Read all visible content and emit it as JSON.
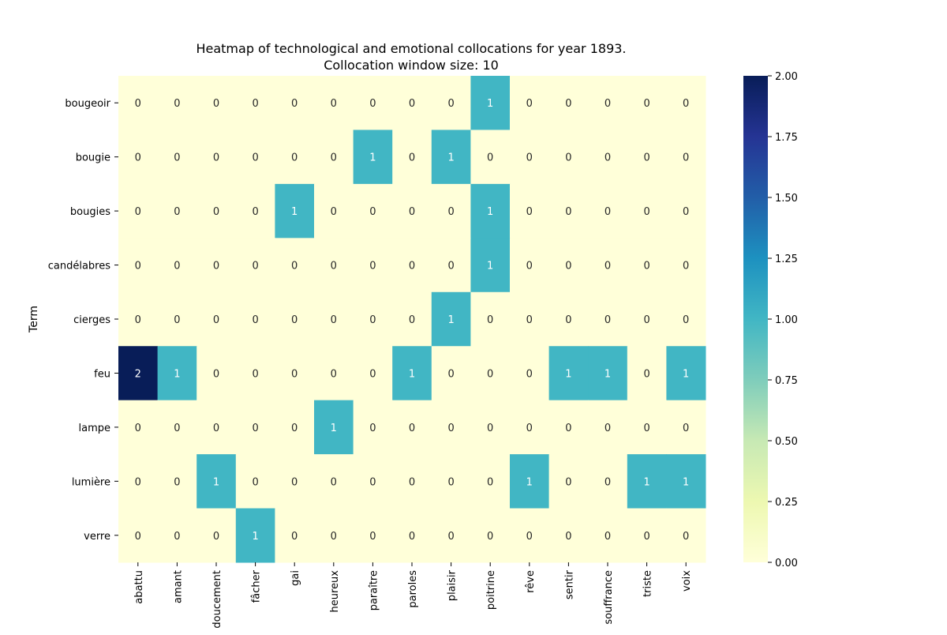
{
  "chart_data": {
    "type": "heatmap",
    "title": "Heatmap of technological and emotional collocations for year 1893.",
    "subtitle": "Collocation window size: 10",
    "xlabel": "",
    "ylabel": "Term",
    "rows": [
      "bougeoir",
      "bougie",
      "bougies",
      "candélabres",
      "cierges",
      "feu",
      "lampe",
      "lumière",
      "verre"
    ],
    "columns": [
      "abattu",
      "amant",
      "doucement",
      "fâcher",
      "gai",
      "heureux",
      "paraître",
      "paroles",
      "plaisir",
      "poitrine",
      "rêve",
      "sentir",
      "souffrance",
      "triste",
      "voix"
    ],
    "values": [
      [
        0,
        0,
        0,
        0,
        0,
        0,
        0,
        0,
        0,
        1,
        0,
        0,
        0,
        0,
        0
      ],
      [
        0,
        0,
        0,
        0,
        0,
        0,
        1,
        0,
        1,
        0,
        0,
        0,
        0,
        0,
        0
      ],
      [
        0,
        0,
        0,
        0,
        1,
        0,
        0,
        0,
        0,
        1,
        0,
        0,
        0,
        0,
        0
      ],
      [
        0,
        0,
        0,
        0,
        0,
        0,
        0,
        0,
        0,
        1,
        0,
        0,
        0,
        0,
        0
      ],
      [
        0,
        0,
        0,
        0,
        0,
        0,
        0,
        0,
        1,
        0,
        0,
        0,
        0,
        0,
        0
      ],
      [
        2,
        1,
        0,
        0,
        0,
        0,
        0,
        1,
        0,
        0,
        0,
        1,
        1,
        0,
        1
      ],
      [
        0,
        0,
        0,
        0,
        0,
        1,
        0,
        0,
        0,
        0,
        0,
        0,
        0,
        0,
        0
      ],
      [
        0,
        0,
        1,
        0,
        0,
        0,
        0,
        0,
        0,
        0,
        1,
        0,
        0,
        1,
        1
      ],
      [
        0,
        0,
        0,
        1,
        0,
        0,
        0,
        0,
        0,
        0,
        0,
        0,
        0,
        0,
        0
      ]
    ],
    "colorbar": {
      "colormap": "YlGnBu",
      "range": [
        0,
        2
      ],
      "ticks": [
        "0.00",
        "0.25",
        "0.50",
        "0.75",
        "1.00",
        "1.25",
        "1.50",
        "1.75",
        "2.00"
      ],
      "stops": [
        "#ffffd9",
        "#edf8b1",
        "#c7e9b4",
        "#7fcdbb",
        "#41b6c4",
        "#1d91c0",
        "#225ea8",
        "#253494",
        "#081d58"
      ]
    },
    "grid": false
  }
}
